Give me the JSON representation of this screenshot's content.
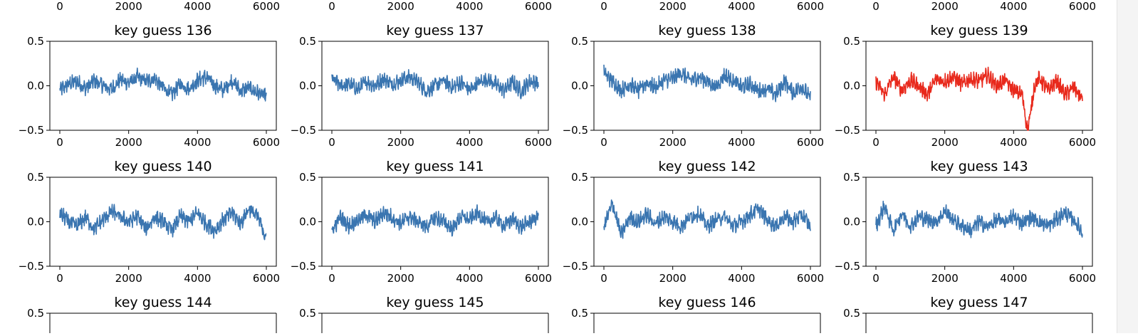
{
  "colors": {
    "default_trace": "#3a75b0",
    "highlight_trace": "#e8291c"
  },
  "top_partial_row": {
    "xticks": [
      "0",
      "2000",
      "4000",
      "6000"
    ]
  },
  "chart_data": [
    {
      "type": "line",
      "title": "key guess 136",
      "xlim": [
        0,
        6000
      ],
      "ylim": [
        -0.5,
        0.5
      ],
      "xticks": [
        "0",
        "2000",
        "4000",
        "6000"
      ],
      "yticks": [
        "0.5",
        "0.0",
        "−0.5"
      ],
      "color": "#3a75b0",
      "grid": false,
      "series": [
        {
          "x": [
            0,
            250,
            500,
            750,
            1000,
            1250,
            1500,
            1750,
            2000,
            2250,
            2500,
            2750,
            3000,
            3250,
            3500,
            3750,
            4000,
            4250,
            4500,
            4750,
            5000,
            5250,
            5500,
            5750,
            6000
          ],
          "y": [
            -0.05,
            0.02,
            0.05,
            -0.03,
            0.06,
            0.0,
            -0.04,
            0.07,
            0.03,
            0.1,
            0.05,
            0.08,
            -0.02,
            -0.1,
            0.02,
            -0.03,
            0.06,
            0.1,
            0.0,
            -0.05,
            0.06,
            -0.06,
            -0.02,
            -0.08,
            -0.12
          ]
        }
      ]
    },
    {
      "type": "line",
      "title": "key guess 137",
      "xlim": [
        0,
        6000
      ],
      "ylim": [
        -0.5,
        0.5
      ],
      "xticks": [
        "0",
        "2000",
        "4000",
        "6000"
      ],
      "yticks": [
        "0.5",
        "0.0",
        "−0.5"
      ],
      "color": "#3a75b0",
      "grid": false,
      "series": [
        {
          "x": [
            0,
            250,
            500,
            750,
            1000,
            1250,
            1500,
            1750,
            2000,
            2250,
            2500,
            2750,
            3000,
            3250,
            3500,
            3750,
            4000,
            4250,
            4500,
            4750,
            5000,
            5250,
            5500,
            5750,
            6000
          ],
          "y": [
            0.08,
            0.0,
            0.02,
            -0.04,
            0.05,
            0.0,
            0.08,
            0.02,
            0.06,
            0.1,
            0.04,
            -0.06,
            0.0,
            0.06,
            -0.02,
            0.04,
            -0.05,
            0.03,
            0.08,
            0.02,
            -0.05,
            0.04,
            -0.06,
            0.05,
            0.03
          ]
        }
      ]
    },
    {
      "type": "line",
      "title": "key guess 138",
      "xlim": [
        0,
        6000
      ],
      "ylim": [
        -0.5,
        0.5
      ],
      "xticks": [
        "0",
        "2000",
        "4000",
        "6000"
      ],
      "yticks": [
        "0.5",
        "0.0",
        "−0.5"
      ],
      "color": "#3a75b0",
      "grid": false,
      "series": [
        {
          "x": [
            0,
            250,
            500,
            750,
            1000,
            1250,
            1500,
            1750,
            2000,
            2250,
            2500,
            2750,
            3000,
            3250,
            3500,
            3750,
            4000,
            4250,
            4500,
            4750,
            5000,
            5250,
            5500,
            5750,
            6000
          ],
          "y": [
            0.15,
            0.05,
            -0.05,
            0.02,
            -0.06,
            0.04,
            -0.02,
            0.06,
            0.08,
            0.15,
            0.06,
            0.1,
            0.05,
            -0.02,
            0.12,
            0.06,
            -0.02,
            0.02,
            -0.06,
            -0.03,
            -0.1,
            0.05,
            -0.08,
            0.0,
            -0.15
          ]
        }
      ]
    },
    {
      "type": "line",
      "title": "key guess 139",
      "xlim": [
        0,
        6000
      ],
      "ylim": [
        -0.5,
        0.5
      ],
      "xticks": [
        "0",
        "2000",
        "4000",
        "6000"
      ],
      "yticks": [
        "0.5",
        "0.0",
        "−0.5"
      ],
      "color": "#e8291c",
      "grid": false,
      "series": [
        {
          "x": [
            0,
            250,
            500,
            750,
            1000,
            1250,
            1500,
            1750,
            2000,
            2250,
            2500,
            2750,
            3000,
            3250,
            3500,
            3750,
            4000,
            4250,
            4400,
            4500,
            4600,
            4750,
            5000,
            5250,
            5500,
            5750,
            6000
          ],
          "y": [
            0.05,
            -0.1,
            0.1,
            -0.05,
            0.06,
            0.0,
            -0.1,
            0.08,
            0.05,
            0.1,
            0.02,
            0.08,
            0.05,
            0.12,
            0.0,
            0.06,
            -0.05,
            -0.1,
            -0.5,
            -0.3,
            0.0,
            0.08,
            -0.05,
            0.05,
            -0.1,
            -0.02,
            -0.15
          ]
        }
      ]
    },
    {
      "type": "line",
      "title": "key guess 140",
      "xlim": [
        0,
        6000
      ],
      "ylim": [
        -0.5,
        0.5
      ],
      "xticks": [
        "0",
        "2000",
        "4000",
        "6000"
      ],
      "yticks": [
        "0.5",
        "0.0",
        "−0.5"
      ],
      "color": "#3a75b0",
      "grid": false,
      "series": [
        {
          "x": [
            0,
            250,
            500,
            750,
            1000,
            1250,
            1500,
            1750,
            2000,
            2250,
            2500,
            2750,
            3000,
            3250,
            3500,
            3750,
            4000,
            4250,
            4500,
            4750,
            5000,
            5250,
            5500,
            5750,
            6000
          ],
          "y": [
            0.1,
            0.0,
            -0.05,
            0.05,
            -0.08,
            0.02,
            0.12,
            0.05,
            0.0,
            0.06,
            -0.08,
            0.05,
            0.0,
            -0.1,
            0.06,
            0.0,
            0.1,
            -0.02,
            -0.1,
            0.02,
            0.1,
            -0.02,
            0.15,
            0.05,
            -0.18
          ]
        }
      ]
    },
    {
      "type": "line",
      "title": "key guess 141",
      "xlim": [
        0,
        6000
      ],
      "ylim": [
        -0.5,
        0.5
      ],
      "xticks": [
        "0",
        "2000",
        "4000",
        "6000"
      ],
      "yticks": [
        "0.5",
        "0.0",
        "−0.5"
      ],
      "color": "#3a75b0",
      "grid": false,
      "series": [
        {
          "x": [
            0,
            250,
            500,
            750,
            1000,
            1250,
            1500,
            1750,
            2000,
            2250,
            2500,
            2750,
            3000,
            3250,
            3500,
            3750,
            4000,
            4250,
            4500,
            4750,
            5000,
            5250,
            5500,
            5750,
            6000
          ],
          "y": [
            -0.1,
            0.05,
            -0.05,
            0.02,
            0.08,
            0.0,
            0.1,
            0.05,
            -0.02,
            0.06,
            0.0,
            -0.06,
            0.05,
            0.0,
            -0.08,
            0.06,
            0.02,
            0.1,
            -0.02,
            0.05,
            -0.05,
            0.03,
            -0.06,
            0.0,
            0.06
          ]
        }
      ]
    },
    {
      "type": "line",
      "title": "key guess 142",
      "xlim": [
        0,
        6000
      ],
      "ylim": [
        -0.5,
        0.5
      ],
      "xticks": [
        "0",
        "2000",
        "4000",
        "6000"
      ],
      "yticks": [
        "0.5",
        "0.0",
        "−0.5"
      ],
      "color": "#3a75b0",
      "grid": false,
      "series": [
        {
          "x": [
            0,
            250,
            500,
            750,
            1000,
            1250,
            1500,
            1750,
            2000,
            2250,
            2500,
            2750,
            3000,
            3250,
            3500,
            3750,
            4000,
            4250,
            4500,
            4750,
            5000,
            5250,
            5500,
            5750,
            6000
          ],
          "y": [
            -0.05,
            0.2,
            -0.15,
            0.05,
            0.0,
            0.08,
            -0.02,
            0.06,
            0.0,
            -0.05,
            0.05,
            0.1,
            -0.05,
            0.02,
            0.06,
            -0.05,
            0.0,
            0.08,
            0.15,
            0.02,
            -0.05,
            0.06,
            0.0,
            0.08,
            -0.05
          ]
        }
      ]
    },
    {
      "type": "line",
      "title": "key guess 143",
      "xlim": [
        0,
        6000
      ],
      "ylim": [
        -0.5,
        0.5
      ],
      "xticks": [
        "0",
        "2000",
        "4000",
        "6000"
      ],
      "yticks": [
        "0.5",
        "0.0",
        "−0.5"
      ],
      "color": "#3a75b0",
      "grid": false,
      "series": [
        {
          "x": [
            0,
            250,
            500,
            750,
            1000,
            1250,
            1500,
            1750,
            2000,
            2250,
            2500,
            2750,
            3000,
            3250,
            3500,
            3750,
            4000,
            4250,
            4500,
            4750,
            5000,
            5250,
            5500,
            5750,
            6000
          ],
          "y": [
            -0.05,
            0.18,
            -0.1,
            0.1,
            -0.05,
            0.06,
            0.02,
            0.0,
            0.12,
            0.02,
            -0.05,
            -0.1,
            0.0,
            -0.06,
            0.02,
            0.0,
            0.06,
            -0.02,
            0.05,
            0.0,
            -0.05,
            0.03,
            0.1,
            0.02,
            -0.12
          ]
        }
      ]
    },
    {
      "type": "line",
      "title": "key guess 144",
      "yticks": [
        "0.5"
      ],
      "partial": true
    },
    {
      "type": "line",
      "title": "key guess 145",
      "yticks": [
        "0.5"
      ],
      "partial": true
    },
    {
      "type": "line",
      "title": "key guess 146",
      "yticks": [
        "0.5"
      ],
      "partial": true
    },
    {
      "type": "line",
      "title": "key guess 147",
      "yticks": [
        "0.5"
      ],
      "partial": true
    }
  ]
}
